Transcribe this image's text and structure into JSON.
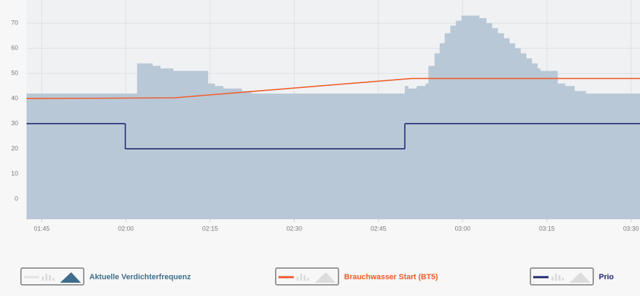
{
  "chart_data": {
    "type": "line",
    "xlim": [
      102.3,
      211.6
    ],
    "xticks": [
      {
        "value": 105,
        "label": "01:45"
      },
      {
        "value": 120,
        "label": "02:00"
      },
      {
        "value": 135,
        "label": "02:15"
      },
      {
        "value": 150,
        "label": "02:30"
      },
      {
        "value": 165,
        "label": "02:45"
      },
      {
        "value": 180,
        "label": "03:00"
      },
      {
        "value": 195,
        "label": "03:15"
      },
      {
        "value": 210,
        "label": "03:30"
      }
    ],
    "ylim": [
      -8,
      80
    ],
    "yticks": [
      0,
      10,
      20,
      30,
      40,
      50,
      60,
      70
    ],
    "grid": true,
    "series": [
      {
        "name": "Aktuelle Verdichterfrequenz",
        "color": "#b9c8d6",
        "text_color": "#3f6e8c",
        "fill": true,
        "step": true,
        "x": [
          102.3,
          122.0,
          124.7,
          126.1,
          128.4,
          134.6,
          135.8,
          137.3,
          140.6,
          142.3,
          169.7,
          170.3,
          171.8,
          173.4,
          173.9,
          175.0,
          175.9,
          176.8,
          177.8,
          178.8,
          179.8,
          182.9,
          184.2,
          185.2,
          186.2,
          187.3,
          188.3,
          189.3,
          190.3,
          191.3,
          192.3,
          193.3,
          193.8,
          196.9,
          198.2,
          199.9,
          201.9,
          211.6
        ],
        "values": [
          42,
          54,
          53,
          52,
          51,
          46,
          45,
          44,
          43,
          42,
          45,
          44,
          45,
          46,
          53,
          58,
          62,
          66,
          69,
          71,
          73,
          72,
          70,
          68,
          66,
          64,
          62,
          60,
          58,
          56,
          54,
          52,
          51,
          46,
          45,
          43,
          42,
          42
        ]
      },
      {
        "name": "Brauchwasser Start (BT5)",
        "color": "#f05a28",
        "text_color": "#f05a28",
        "fill": false,
        "step": false,
        "x": [
          102.3,
          128.6,
          170.9,
          211.6
        ],
        "values": [
          40,
          40.3,
          48,
          48
        ]
      },
      {
        "name": "Prio",
        "color": "#1f2470",
        "text_color": "#1f2470",
        "fill": false,
        "step": true,
        "x": [
          102.3,
          119.9,
          169.7,
          211.6
        ],
        "values": [
          30,
          20,
          30,
          30
        ]
      }
    ]
  }
}
